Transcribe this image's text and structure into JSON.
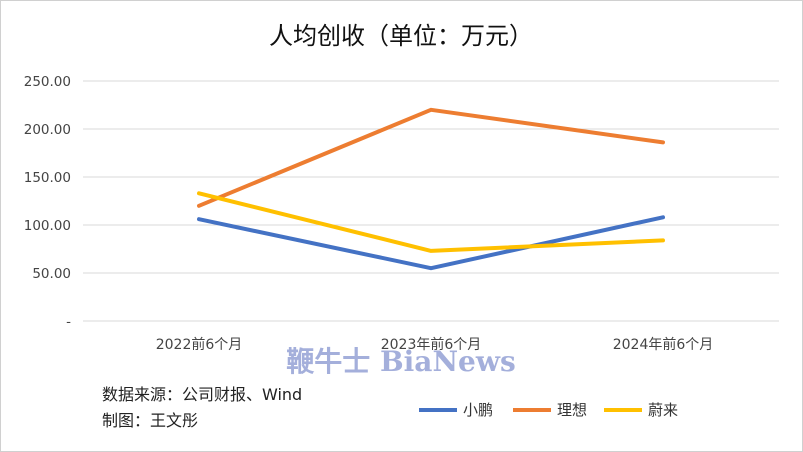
{
  "watermark": "鞭牛士 BiaNews",
  "source": "数据来源：公司财报、Wind",
  "author": "制图：王文彤",
  "chart_data": {
    "type": "line",
    "title": "人均创收（单位：万元）",
    "categories": [
      "2022前6个月",
      "2023年前6个月",
      "2024年前6个月"
    ],
    "series": [
      {
        "name": "小鹏",
        "color": "#4472c4",
        "values": [
          106,
          55,
          108
        ]
      },
      {
        "name": "理想",
        "color": "#ed7d31",
        "values": [
          120,
          220,
          186
        ]
      },
      {
        "name": "蔚来",
        "color": "#ffc000",
        "values": [
          133,
          73,
          84
        ]
      }
    ],
    "ylim": [
      0,
      250
    ],
    "yticks": [
      "-",
      "50.00",
      "100.00",
      "150.00",
      "200.00",
      "250.00"
    ],
    "grid": true,
    "legend": "bottom-right"
  }
}
